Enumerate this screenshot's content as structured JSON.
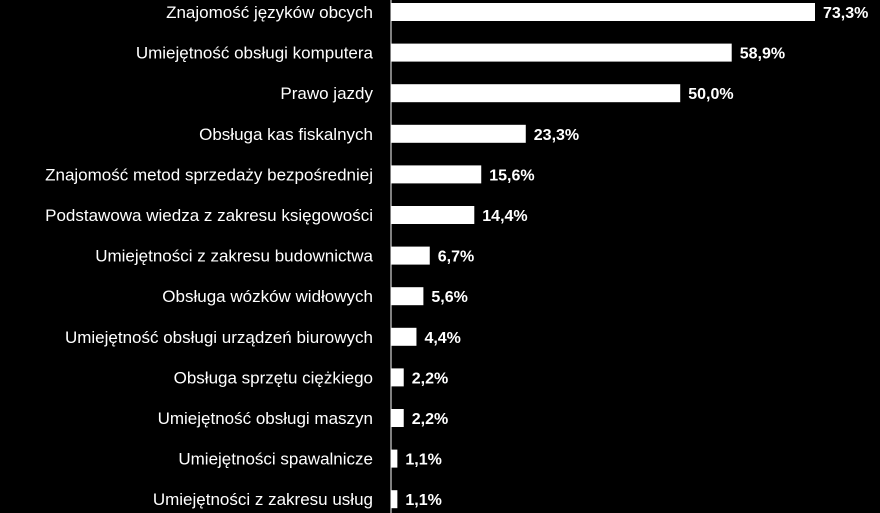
{
  "chart_data": {
    "type": "bar",
    "orientation": "horizontal",
    "categories": [
      "Znajomość języków obcych",
      "Umiejętność obsługi komputera",
      "Prawo jazdy",
      "Obsługa kas fiskalnych",
      "Znajomość metod sprzedaży bezpośredniej",
      "Podstawowa wiedza z zakresu księgowości",
      "Umiejętności z zakresu budownictwa",
      "Obsługa wózków widłowych",
      "Umiejętność obsługi urządzeń biurowych",
      "Obsługa sprzętu ciężkiego",
      "Umiejętność obsługi maszyn",
      "Umiejętności spawalnicze",
      "Umiejętności z zakresu usług"
    ],
    "values": [
      73.3,
      58.9,
      50.0,
      23.3,
      15.6,
      14.4,
      6.7,
      5.6,
      4.4,
      2.2,
      2.2,
      1.1,
      1.1
    ],
    "value_labels": [
      "73,3%",
      "58,9%",
      "50,0%",
      "23,3%",
      "15,6%",
      "14,4%",
      "6,7%",
      "5,6%",
      "4,4%",
      "2,2%",
      "2,2%",
      "1,1%",
      "1,1%"
    ],
    "xlim": [
      0,
      73.3
    ],
    "grid": false,
    "legend": "none",
    "colors": {
      "background": "#000000",
      "bar": "#ffffff",
      "text": "#ffffff"
    }
  }
}
